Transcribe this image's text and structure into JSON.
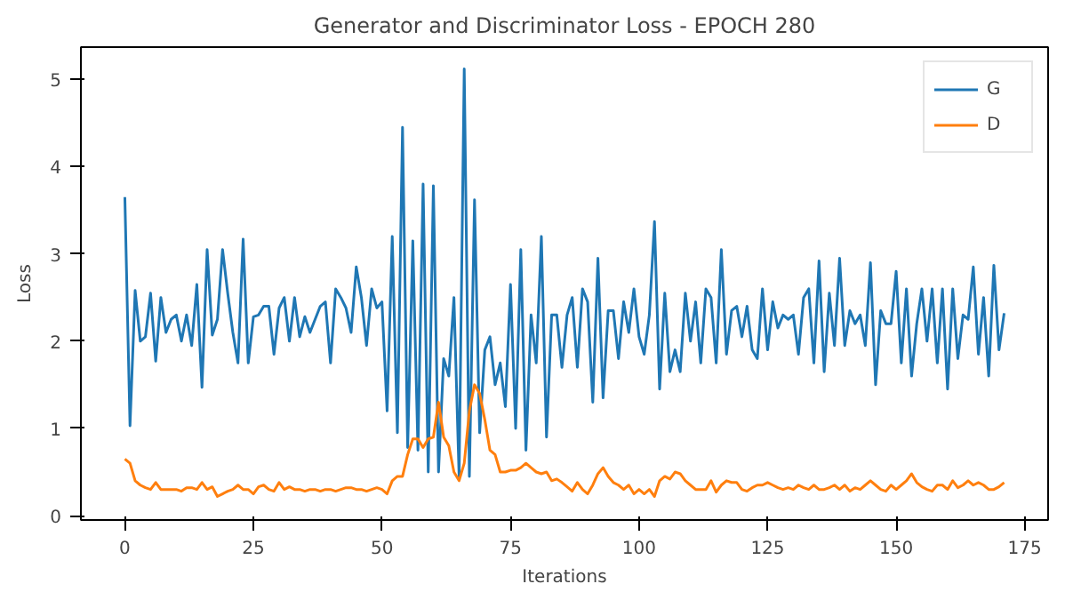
{
  "chart_data": {
    "type": "line",
    "title": "Generator and Discriminator Loss - EPOCH 280",
    "xlabel": "Iterations",
    "ylabel": "Loss",
    "x": [
      0,
      1,
      2,
      3,
      4,
      5,
      6,
      7,
      8,
      9,
      10,
      11,
      12,
      13,
      14,
      15,
      16,
      17,
      18,
      19,
      20,
      21,
      22,
      23,
      24,
      25,
      26,
      27,
      28,
      29,
      30,
      31,
      32,
      33,
      34,
      35,
      36,
      37,
      38,
      39,
      40,
      41,
      42,
      43,
      44,
      45,
      46,
      47,
      48,
      49,
      50,
      51,
      52,
      53,
      54,
      55,
      56,
      57,
      58,
      59,
      60,
      61,
      62,
      63,
      64,
      65,
      66,
      67,
      68,
      69,
      70,
      71,
      72,
      73,
      74,
      75,
      76,
      77,
      78,
      79,
      80,
      81,
      82,
      83,
      84,
      85,
      86,
      87,
      88,
      89,
      90,
      91,
      92,
      93,
      94,
      95,
      96,
      97,
      98,
      99,
      100,
      101,
      102,
      103,
      104,
      105,
      106,
      107,
      108,
      109,
      110,
      111,
      112,
      113,
      114,
      115,
      116,
      117,
      118,
      119,
      120,
      121,
      122,
      123,
      124,
      125,
      126,
      127,
      128,
      129,
      130,
      131,
      132,
      133,
      134,
      135,
      136,
      137,
      138,
      139,
      140,
      141,
      142,
      143,
      144,
      145,
      146,
      147,
      148,
      149,
      150,
      151,
      152,
      153,
      154,
      155,
      156,
      157,
      158,
      159,
      160,
      161,
      162,
      163,
      164,
      165,
      166,
      167,
      168,
      169,
      170,
      171
    ],
    "series": [
      {
        "name": "G",
        "color": "#1f77b4",
        "values": [
          3.65,
          1.03,
          2.58,
          2.0,
          2.05,
          2.55,
          1.77,
          2.5,
          2.1,
          2.25,
          2.3,
          2.0,
          2.3,
          1.95,
          2.65,
          1.47,
          3.05,
          2.07,
          2.25,
          3.05,
          2.55,
          2.1,
          1.75,
          3.17,
          1.75,
          2.28,
          2.3,
          2.4,
          2.4,
          1.85,
          2.38,
          2.5,
          2.0,
          2.5,
          2.05,
          2.28,
          2.1,
          2.25,
          2.4,
          2.45,
          1.75,
          2.6,
          2.5,
          2.38,
          2.1,
          2.85,
          2.5,
          1.95,
          2.6,
          2.38,
          2.45,
          1.2,
          3.2,
          0.95,
          4.45,
          0.78,
          3.15,
          0.75,
          3.8,
          0.5,
          3.78,
          0.5,
          1.8,
          1.6,
          2.5,
          0.45,
          5.12,
          0.45,
          3.62,
          0.95,
          1.9,
          2.05,
          1.5,
          1.75,
          1.25,
          2.65,
          1.0,
          3.05,
          0.75,
          2.3,
          1.75,
          3.2,
          0.9,
          2.3,
          2.3,
          1.7,
          2.3,
          2.5,
          1.7,
          2.6,
          2.45,
          1.3,
          2.95,
          1.35,
          2.35,
          2.35,
          1.8,
          2.45,
          2.1,
          2.6,
          2.05,
          1.85,
          2.3,
          3.37,
          1.45,
          2.55,
          1.65,
          1.9,
          1.65,
          2.55,
          2.0,
          2.45,
          1.75,
          2.6,
          2.5,
          1.75,
          3.05,
          1.85,
          2.35,
          2.4,
          2.05,
          2.4,
          1.9,
          1.8,
          2.6,
          1.9,
          2.45,
          2.15,
          2.3,
          2.25,
          2.3,
          1.85,
          2.5,
          2.6,
          1.75,
          2.92,
          1.65,
          2.55,
          1.95,
          2.95,
          1.95,
          2.35,
          2.2,
          2.3,
          1.95,
          2.9,
          1.5,
          2.35,
          2.2,
          2.2,
          2.8,
          1.75,
          2.6,
          1.6,
          2.2,
          2.6,
          2.0,
          2.6,
          1.75,
          2.6,
          1.45,
          2.6,
          1.8,
          2.3,
          2.25,
          2.85,
          1.85,
          2.5,
          1.6,
          2.87,
          1.9,
          2.32
        ]
      },
      {
        "name": "D",
        "color": "#ff7f0e",
        "values": [
          0.65,
          0.6,
          0.4,
          0.35,
          0.32,
          0.3,
          0.38,
          0.3,
          0.3,
          0.3,
          0.3,
          0.28,
          0.32,
          0.32,
          0.3,
          0.38,
          0.3,
          0.33,
          0.22,
          0.25,
          0.28,
          0.3,
          0.35,
          0.3,
          0.3,
          0.25,
          0.33,
          0.35,
          0.3,
          0.28,
          0.38,
          0.3,
          0.33,
          0.3,
          0.3,
          0.28,
          0.3,
          0.3,
          0.28,
          0.3,
          0.3,
          0.28,
          0.3,
          0.32,
          0.32,
          0.3,
          0.3,
          0.28,
          0.3,
          0.32,
          0.3,
          0.25,
          0.4,
          0.45,
          0.45,
          0.7,
          0.88,
          0.88,
          0.78,
          0.88,
          0.9,
          1.3,
          0.9,
          0.8,
          0.5,
          0.4,
          0.6,
          1.2,
          1.5,
          1.4,
          1.1,
          0.75,
          0.7,
          0.5,
          0.5,
          0.52,
          0.52,
          0.55,
          0.6,
          0.55,
          0.5,
          0.48,
          0.5,
          0.4,
          0.42,
          0.38,
          0.33,
          0.28,
          0.38,
          0.3,
          0.25,
          0.35,
          0.48,
          0.55,
          0.45,
          0.38,
          0.35,
          0.3,
          0.35,
          0.25,
          0.3,
          0.25,
          0.3,
          0.22,
          0.4,
          0.45,
          0.42,
          0.5,
          0.48,
          0.4,
          0.35,
          0.3,
          0.3,
          0.3,
          0.4,
          0.27,
          0.35,
          0.4,
          0.38,
          0.38,
          0.3,
          0.28,
          0.32,
          0.35,
          0.35,
          0.38,
          0.35,
          0.32,
          0.3,
          0.32,
          0.3,
          0.35,
          0.32,
          0.3,
          0.35,
          0.3,
          0.3,
          0.32,
          0.35,
          0.3,
          0.35,
          0.28,
          0.32,
          0.3,
          0.35,
          0.4,
          0.35,
          0.3,
          0.28,
          0.35,
          0.3,
          0.35,
          0.4,
          0.48,
          0.38,
          0.33,
          0.3,
          0.28,
          0.35,
          0.35,
          0.3,
          0.4,
          0.32,
          0.35,
          0.4,
          0.35,
          0.38,
          0.35,
          0.3,
          0.3,
          0.33,
          0.38
        ]
      }
    ],
    "xlim": [
      -8.55,
      179.55
    ],
    "ylim": [
      -0.05,
      5.37
    ],
    "xticks": [
      0,
      25,
      50,
      75,
      100,
      125,
      150,
      175
    ],
    "yticks": [
      0,
      1,
      2,
      3,
      4,
      5
    ],
    "grid": false,
    "legend": "top right",
    "line_style": "solid"
  }
}
